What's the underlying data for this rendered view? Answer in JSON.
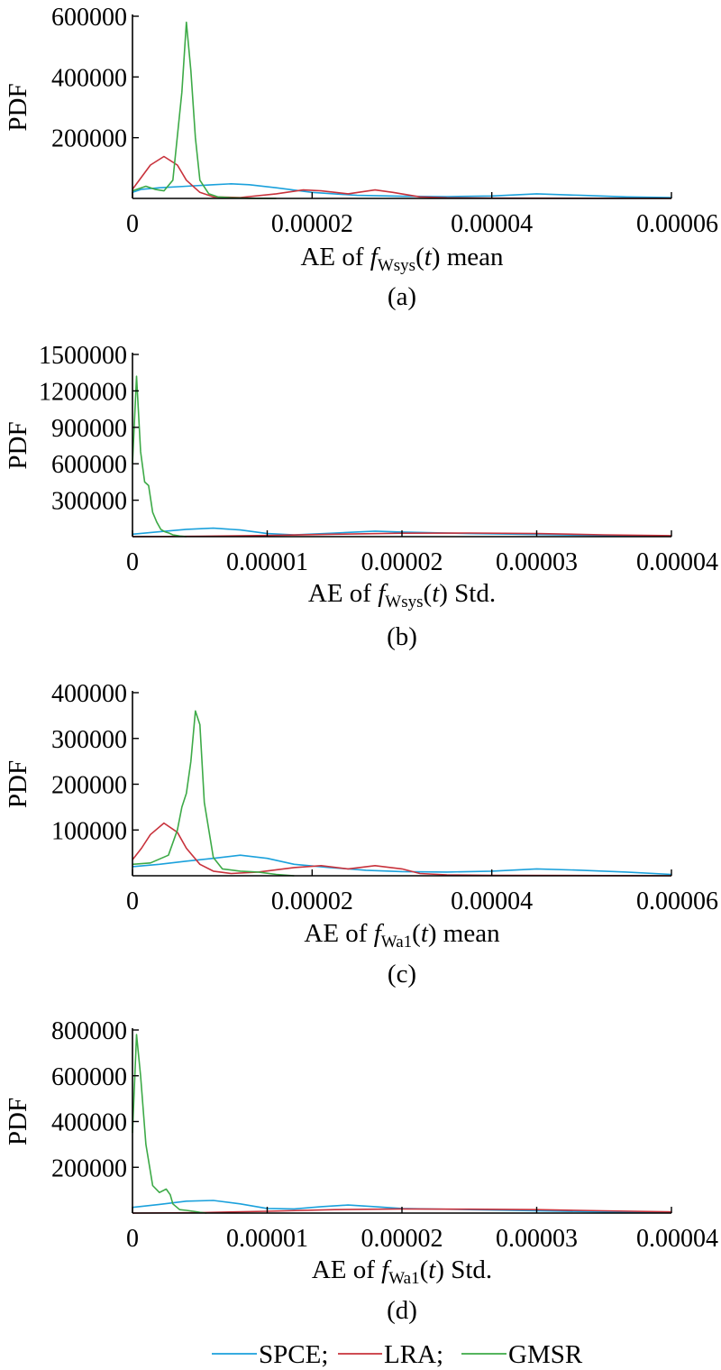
{
  "chart_data": [
    {
      "type": "line",
      "panel_label": "(a)",
      "ylabel": "PDF",
      "xlabel": {
        "prefix": "AE of ",
        "f": "f",
        "sub": "Wsys",
        "open": "(",
        "t": "t",
        "close": ")",
        "suffix": " mean"
      },
      "xlim": [
        0,
        6e-05
      ],
      "ylim": [
        0,
        600000
      ],
      "xticks": [
        0,
        2e-05,
        4e-05,
        6e-05
      ],
      "xtick_labels": [
        "0",
        "0.00002",
        "0.00004",
        "0.00006"
      ],
      "yticks": [
        200000,
        400000,
        600000
      ],
      "ytick_labels": [
        "200000",
        "400000",
        "600000"
      ],
      "series": [
        {
          "name": "SPCE",
          "color": "#1ba1dc",
          "x": [
            0,
            1e-06,
            3e-06,
            6e-06,
            9e-06,
            1.1e-05,
            1.3e-05,
            1.6e-05,
            2e-05,
            2.5e-05,
            3e-05,
            3.5e-05,
            4e-05,
            4.5e-05,
            5e-05,
            5.5e-05,
            6e-05
          ],
          "y": [
            20000,
            30000,
            35000,
            40000,
            45000,
            48000,
            45000,
            35000,
            20000,
            10000,
            7000,
            6000,
            8000,
            15000,
            10000,
            5000,
            3000
          ]
        },
        {
          "name": "LRA",
          "color": "#c8323c",
          "x": [
            0,
            1e-06,
            2e-06,
            3.5e-06,
            5e-06,
            6e-06,
            7.5e-06,
            9e-06,
            1.2e-05,
            1.6e-05,
            1.9e-05,
            2.1e-05,
            2.4e-05,
            2.7e-05,
            2.9e-05,
            3.2e-05,
            3.5e-05,
            4e-05,
            6e-05
          ],
          "y": [
            30000,
            70000,
            110000,
            138000,
            110000,
            60000,
            20000,
            5000,
            3000,
            15000,
            28000,
            25000,
            15000,
            28000,
            20000,
            5000,
            2000,
            1000,
            0
          ]
        },
        {
          "name": "GMSR",
          "color": "#3daa47",
          "x": [
            0,
            1.5e-06,
            2.5e-06,
            3.5e-06,
            4.5e-06,
            5.5e-06,
            6e-06,
            6.5e-06,
            7e-06,
            7.5e-06,
            8.5e-06,
            9.5e-06,
            1.1e-05,
            1.3e-05,
            1.6e-05
          ],
          "y": [
            25000,
            40000,
            30000,
            25000,
            60000,
            350000,
            580000,
            420000,
            200000,
            60000,
            15000,
            5000,
            2000,
            500,
            0
          ]
        }
      ]
    },
    {
      "type": "line",
      "panel_label": "(b)",
      "ylabel": "PDF",
      "xlabel": {
        "prefix": "AE of ",
        "f": "f",
        "sub": "Wsys",
        "open": "(",
        "t": "t",
        "close": ")",
        "suffix": " Std."
      },
      "xlim": [
        0,
        4e-05
      ],
      "ylim": [
        0,
        1500000
      ],
      "xticks": [
        0,
        1e-05,
        2e-05,
        3e-05,
        4e-05
      ],
      "xtick_labels": [
        "0",
        "0.00001",
        "0.00002",
        "0.00003",
        "0.00004"
      ],
      "yticks": [
        300000,
        600000,
        900000,
        1200000,
        1500000
      ],
      "ytick_labels": [
        "300000",
        "600000",
        "900000",
        "1200000",
        "1500000"
      ],
      "series": [
        {
          "name": "SPCE",
          "color": "#1ba1dc",
          "x": [
            0,
            2e-06,
            4e-06,
            6e-06,
            8e-06,
            1e-05,
            1.2e-05,
            1.5e-05,
            1.8e-05,
            2e-05,
            2.5e-05,
            3e-05,
            3.5e-05,
            4e-05
          ],
          "y": [
            20000,
            40000,
            60000,
            70000,
            55000,
            25000,
            15000,
            30000,
            45000,
            38000,
            25000,
            18000,
            10000,
            5000
          ]
        },
        {
          "name": "LRA",
          "color": "#c8323c",
          "x": [
            0,
            5e-06,
            1e-05,
            1.5e-05,
            2e-05,
            2.5e-05,
            3e-05,
            3.5e-05,
            4e-05
          ],
          "y": [
            0,
            3000,
            10000,
            20000,
            28000,
            30000,
            25000,
            15000,
            8000
          ]
        },
        {
          "name": "GMSR",
          "color": "#3daa47",
          "x": [
            0,
            3e-07,
            6e-07,
            9e-07,
            1.2e-06,
            1.5e-06,
            1.8e-06,
            2.1e-06,
            2.4e-06,
            2.7e-06,
            3e-06,
            3.5e-06,
            4e-06
          ],
          "y": [
            600000,
            1320000,
            700000,
            450000,
            420000,
            200000,
            120000,
            60000,
            40000,
            30000,
            15000,
            5000,
            0
          ]
        }
      ]
    },
    {
      "type": "line",
      "panel_label": "(c)",
      "ylabel": "PDF",
      "xlabel": {
        "prefix": "AE of ",
        "f": "f",
        "sub": "Wa1",
        "open": "(",
        "t": "t",
        "close": ")",
        "suffix": " mean"
      },
      "xlim": [
        0,
        6e-05
      ],
      "ylim": [
        0,
        400000
      ],
      "xticks": [
        0,
        2e-05,
        4e-05,
        6e-05
      ],
      "xtick_labels": [
        "0",
        "0.00002",
        "0.00004",
        "0.00006"
      ],
      "yticks": [
        100000,
        200000,
        300000,
        400000
      ],
      "ytick_labels": [
        "100000",
        "200000",
        "300000",
        "400000"
      ],
      "series": [
        {
          "name": "SPCE",
          "color": "#1ba1dc",
          "x": [
            0,
            3e-06,
            6e-06,
            9e-06,
            1.2e-05,
            1.5e-05,
            1.8e-05,
            2.2e-05,
            2.6e-05,
            3e-05,
            3.5e-05,
            4e-05,
            4.5e-05,
            5e-05,
            5.5e-05,
            6e-05
          ],
          "y": [
            20000,
            25000,
            32000,
            38000,
            45000,
            38000,
            25000,
            18000,
            12000,
            9000,
            8000,
            10000,
            15000,
            12000,
            8000,
            3000
          ]
        },
        {
          "name": "LRA",
          "color": "#c8323c",
          "x": [
            0,
            1e-06,
            2e-06,
            3.5e-06,
            5e-06,
            6e-06,
            7.5e-06,
            9e-06,
            1.1e-05,
            1.4e-05,
            1.8e-05,
            2.1e-05,
            2.4e-05,
            2.7e-05,
            3e-05,
            3.2e-05,
            3.5e-05,
            4e-05,
            6e-05
          ],
          "y": [
            35000,
            60000,
            90000,
            115000,
            95000,
            60000,
            25000,
            10000,
            5000,
            8000,
            18000,
            22000,
            15000,
            22000,
            15000,
            5000,
            2000,
            1000,
            0
          ]
        },
        {
          "name": "GMSR",
          "color": "#3daa47",
          "x": [
            0,
            2e-06,
            4e-06,
            5e-06,
            5.5e-06,
            6e-06,
            6.5e-06,
            7e-06,
            7.5e-06,
            8e-06,
            9e-06,
            1e-05,
            1.2e-05,
            1.4e-05,
            1.6e-05,
            1.8e-05
          ],
          "y": [
            25000,
            28000,
            45000,
            100000,
            150000,
            180000,
            250000,
            360000,
            330000,
            160000,
            40000,
            15000,
            10000,
            8000,
            3000,
            0
          ]
        }
      ]
    },
    {
      "type": "line",
      "panel_label": "(d)",
      "ylabel": "PDF",
      "xlabel": {
        "prefix": "AE of ",
        "f": "f",
        "sub": "Wa1",
        "open": "(",
        "t": "t",
        "close": ")",
        "suffix": " Std."
      },
      "xlim": [
        0,
        4e-05
      ],
      "ylim": [
        0,
        800000
      ],
      "xticks": [
        0,
        1e-05,
        2e-05,
        3e-05,
        4e-05
      ],
      "xtick_labels": [
        "0",
        "0.00001",
        "0.00002",
        "0.00003",
        "0.00004"
      ],
      "yticks": [
        200000,
        400000,
        600000,
        800000
      ],
      "ytick_labels": [
        "200000",
        "400000",
        "600000",
        "800000"
      ],
      "series": [
        {
          "name": "SPCE",
          "color": "#1ba1dc",
          "x": [
            0,
            2e-06,
            4e-06,
            6e-06,
            8e-06,
            1e-05,
            1.2e-05,
            1.4e-05,
            1.6e-05,
            1.8e-05,
            2e-05,
            2.5e-05,
            3e-05,
            3.5e-05,
            4e-05
          ],
          "y": [
            25000,
            38000,
            52000,
            55000,
            40000,
            20000,
            18000,
            28000,
            35000,
            28000,
            20000,
            15000,
            10000,
            5000,
            3000
          ]
        },
        {
          "name": "LRA",
          "color": "#c8323c",
          "x": [
            0,
            5e-06,
            1e-05,
            1.5e-05,
            2e-05,
            2.5e-05,
            3e-05,
            3.5e-05,
            4e-05
          ],
          "y": [
            0,
            2000,
            8000,
            15000,
            18000,
            17000,
            15000,
            10000,
            5000
          ]
        },
        {
          "name": "GMSR",
          "color": "#3daa47",
          "x": [
            0,
            3e-07,
            6e-07,
            1e-06,
            1.5e-06,
            2e-06,
            2.5e-06,
            2.8e-06,
            3e-06,
            3.5e-06,
            4e-06,
            4.5e-06,
            5e-06,
            5.5e-06
          ],
          "y": [
            350000,
            780000,
            600000,
            300000,
            120000,
            90000,
            105000,
            80000,
            40000,
            15000,
            12000,
            8000,
            3000,
            0
          ]
        }
      ]
    }
  ],
  "legend": {
    "items": [
      {
        "label": "SPCE;",
        "color": "#1ba1dc"
      },
      {
        "label": "LRA;",
        "color": "#c8323c"
      },
      {
        "label": "GMSR",
        "color": "#3daa47"
      }
    ]
  }
}
